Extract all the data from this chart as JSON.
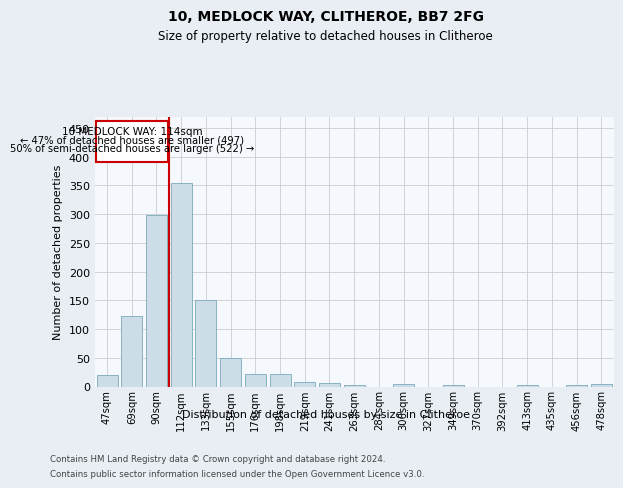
{
  "title1": "10, MEDLOCK WAY, CLITHEROE, BB7 2FG",
  "title2": "Size of property relative to detached houses in Clitheroe",
  "xlabel": "Distribution of detached houses by size in Clitheroe",
  "ylabel": "Number of detached properties",
  "footnote1": "Contains HM Land Registry data © Crown copyright and database right 2024.",
  "footnote2": "Contains public sector information licensed under the Open Government Licence v3.0.",
  "categories": [
    "47sqm",
    "69sqm",
    "90sqm",
    "112sqm",
    "133sqm",
    "155sqm",
    "176sqm",
    "198sqm",
    "219sqm",
    "241sqm",
    "263sqm",
    "284sqm",
    "306sqm",
    "327sqm",
    "349sqm",
    "370sqm",
    "392sqm",
    "413sqm",
    "435sqm",
    "456sqm",
    "478sqm"
  ],
  "values": [
    20,
    122,
    298,
    354,
    150,
    50,
    22,
    22,
    8,
    6,
    2,
    0,
    5,
    0,
    2,
    0,
    0,
    2,
    0,
    2,
    4
  ],
  "bar_color": "#ccdde8",
  "bar_edge_color": "#7aaabb",
  "grid_color": "#cccccc",
  "annotation_box_color": "#cc0000",
  "property_line_color": "#cc0000",
  "property_label": "10 MEDLOCK WAY: 114sqm",
  "annotation_line1": "← 47% of detached houses are smaller (497)",
  "annotation_line2": "50% of semi-detached houses are larger (522) →",
  "ylim": [
    0,
    470
  ],
  "yticks": [
    0,
    50,
    100,
    150,
    200,
    250,
    300,
    350,
    400,
    450
  ],
  "bg_color": "#e8eef4",
  "plot_bg_color": "#f5f8fc"
}
